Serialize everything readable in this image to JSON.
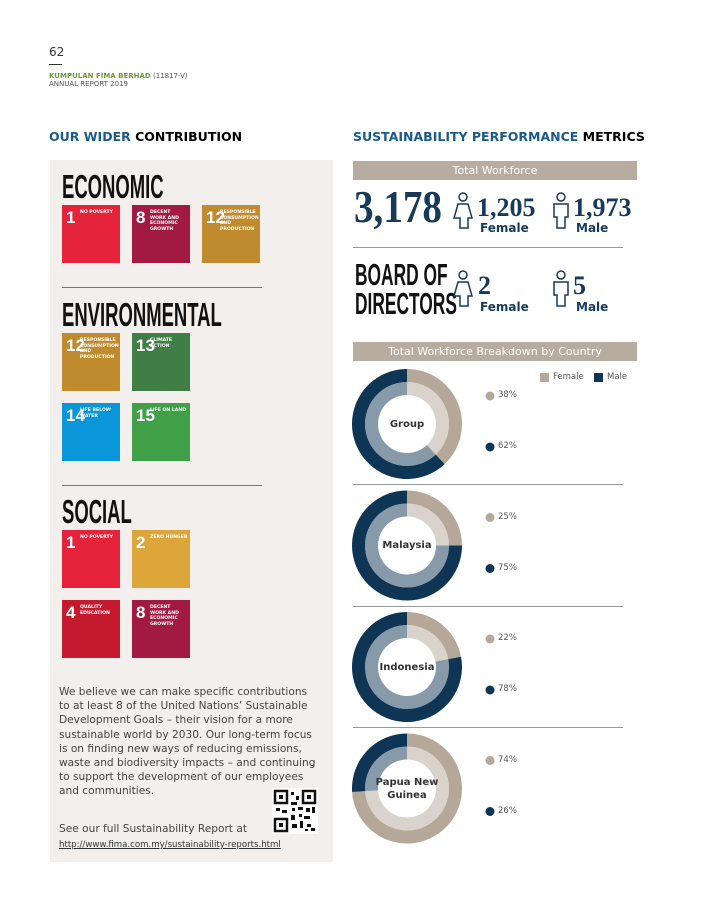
{
  "header": {
    "page_number": "62",
    "company": "KUMPULAN FIMA BERHAD",
    "company_reg": "(11817-V)",
    "report": "ANNUAL REPORT 2019"
  },
  "left": {
    "title_highlight": "OUR WIDER",
    "title_rest": "CONTRIBUTION",
    "sections": [
      {
        "heading": "ECONOMIC",
        "tiles": [
          {
            "number": "1",
            "label": "NO POVERTY",
            "color": "#e5243b"
          },
          {
            "number": "8",
            "label": "DECENT WORK AND ECONOMIC GROWTH",
            "color": "#a21942"
          },
          {
            "number": "12",
            "label": "RESPONSIBLE CONSUMPTION AND PRODUCTION",
            "color": "#bf8b2e"
          }
        ]
      },
      {
        "heading": "ENVIRONMENTAL",
        "tiles": [
          {
            "number": "12",
            "label": "RESPONSIBLE CONSUMPTION AND PRODUCTION",
            "color": "#bf8b2e"
          },
          {
            "number": "13",
            "label": "CLIMATE ACTION",
            "color": "#3f7e44"
          },
          {
            "number": "14",
            "label": "LIFE BELOW WATER",
            "color": "#0a97d9"
          },
          {
            "number": "15",
            "label": "LIFE ON LAND",
            "color": "#3fa047"
          }
        ]
      },
      {
        "heading": "SOCIAL",
        "tiles": [
          {
            "number": "1",
            "label": "NO POVERTY",
            "color": "#e5243b"
          },
          {
            "number": "2",
            "label": "ZERO HUNGER",
            "color": "#dda63a"
          },
          {
            "number": "4",
            "label": "QUALITY EDUCATION",
            "color": "#c5192d"
          },
          {
            "number": "8",
            "label": "DECENT WORK AND ECONOMIC GROWTH",
            "color": "#a21942"
          }
        ]
      }
    ],
    "paragraph": "We believe we can make specific contributions to at least 8 of the United Nations’ Sustainable Development Goals – their vision for a more sustainable world by 2030. Our long-term focus is on finding new ways of reducing emissions, waste and biodiversity impacts – and continuing to support the development of our employees and communities.",
    "see_more": "See our full Sustainability Report at",
    "link": "http://www.fima.com.my/sustainability-reports.html"
  },
  "right": {
    "title_highlight": "SUSTAINABILITY PERFORMANCE",
    "title_rest": "METRICS",
    "workforce": {
      "bar": "Total Workforce",
      "total": "3,178",
      "female": "1,205",
      "female_label": "Female",
      "male": "1,973",
      "male_label": "Male"
    },
    "board": {
      "heading": "BOARD OF DIRECTORS",
      "female": "2",
      "female_label": "Female",
      "male": "5",
      "male_label": "Male"
    },
    "breakdown": {
      "bar": "Total Workforce Breakdown by Country",
      "legend": [
        "Female",
        "Male"
      ],
      "colors": [
        "#b5a899",
        "#0f3554"
      ],
      "countries": [
        {
          "name": "Group",
          "values": [
            38,
            62
          ],
          "value_labels": [
            "38%",
            "62%"
          ]
        },
        {
          "name": "Malaysia",
          "values": [
            25,
            75
          ],
          "value_labels": [
            "25%",
            "75%"
          ]
        },
        {
          "name": "Indonesia",
          "values": [
            22,
            78
          ],
          "value_labels": [
            "22%",
            "78%"
          ]
        },
        {
          "name": "Papua New Guinea",
          "values": [
            74,
            26
          ],
          "value_labels": [
            "74%",
            "26%"
          ]
        }
      ]
    }
  }
}
